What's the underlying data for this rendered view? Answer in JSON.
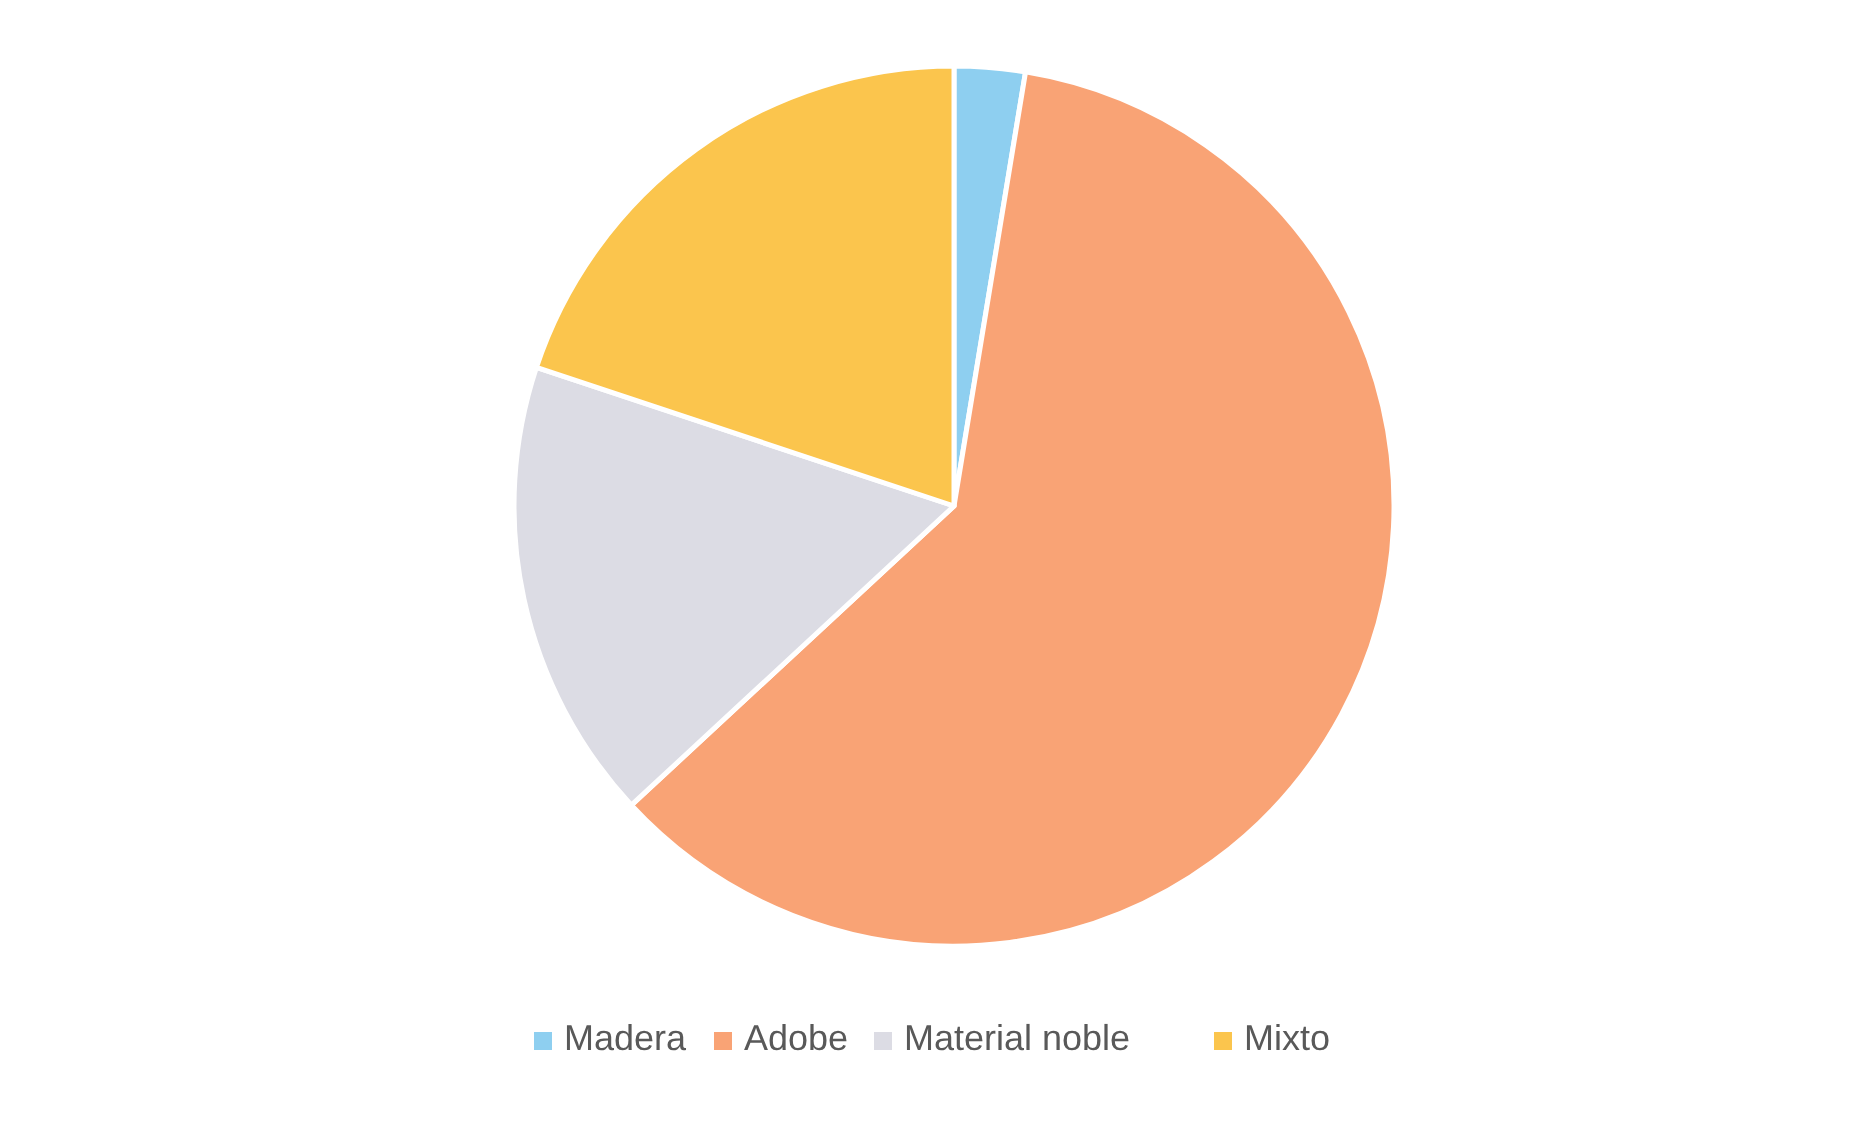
{
  "chart_data": {
    "type": "pie",
    "categories": [
      "Madera",
      "Adobe",
      "Material noble",
      "Mixto"
    ],
    "values": [
      2.6,
      60.5,
      17.0,
      19.9
    ],
    "colors": [
      "#8ecff0",
      "#f9a375",
      "#dcdce4",
      "#fbc54d"
    ],
    "legend": "bottom"
  }
}
